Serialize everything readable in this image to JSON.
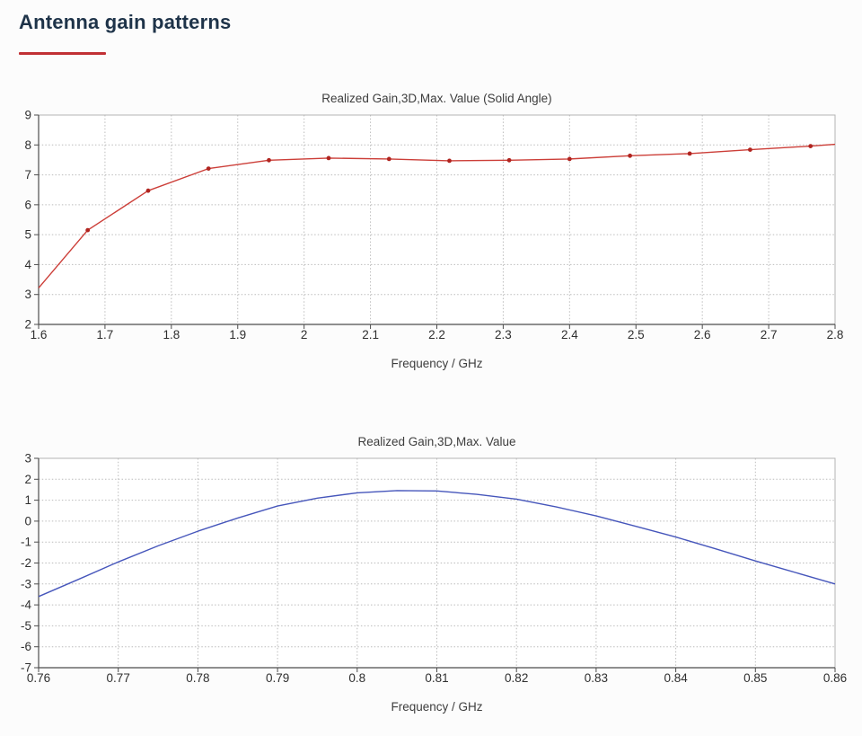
{
  "heading": {
    "text": "Antenna gain patterns",
    "text_color": "#1e3349",
    "underline_color": "#c13034"
  },
  "chart_data": [
    {
      "type": "line",
      "title": "Realized Gain,3D,Max. Value (Solid Angle)",
      "xlabel": "Frequency / GHz",
      "ylabel": "",
      "xlim": [
        1.6,
        2.8
      ],
      "ylim": [
        2,
        9
      ],
      "grid": true,
      "legend_position": "none",
      "xticks": [
        {
          "v": 1.6,
          "label": "1.6"
        },
        {
          "v": 1.7,
          "label": "1.7"
        },
        {
          "v": 1.8,
          "label": "1.8"
        },
        {
          "v": 1.9,
          "label": "1.9"
        },
        {
          "v": 2.0,
          "label": "2"
        },
        {
          "v": 2.1,
          "label": "2.1"
        },
        {
          "v": 2.2,
          "label": "2.2"
        },
        {
          "v": 2.3,
          "label": "2.3"
        },
        {
          "v": 2.4,
          "label": "2.4"
        },
        {
          "v": 2.5,
          "label": "2.5"
        },
        {
          "v": 2.6,
          "label": "2.6"
        },
        {
          "v": 2.7,
          "label": "2.7"
        },
        {
          "v": 2.8,
          "label": "2.8"
        }
      ],
      "yticks": [
        {
          "v": 2,
          "label": "2"
        },
        {
          "v": 3,
          "label": "3"
        },
        {
          "v": 4,
          "label": "4"
        },
        {
          "v": 5,
          "label": "5"
        },
        {
          "v": 6,
          "label": "6"
        },
        {
          "v": 7,
          "label": "7"
        },
        {
          "v": 8,
          "label": "8"
        },
        {
          "v": 9,
          "label": "9"
        }
      ],
      "series": [
        {
          "name": "Realized Gain, solid angle",
          "color": "#cc3e38",
          "marker_color": "#b0241f",
          "x": [
            1.6,
            1.674,
            1.765,
            1.856,
            1.947,
            2.037,
            2.128,
            2.219,
            2.309,
            2.4,
            2.491,
            2.581,
            2.672,
            2.763,
            2.8
          ],
          "y": [
            3.22,
            5.15,
            6.47,
            7.21,
            7.49,
            7.56,
            7.53,
            7.47,
            7.49,
            7.53,
            7.64,
            7.71,
            7.84,
            7.96,
            8.02
          ],
          "marker_x": [
            1.674,
            1.765,
            1.856,
            1.947,
            2.037,
            2.128,
            2.219,
            2.309,
            2.4,
            2.491,
            2.581,
            2.672,
            2.763
          ],
          "marker_y": [
            5.15,
            6.47,
            7.21,
            7.49,
            7.56,
            7.53,
            7.47,
            7.49,
            7.53,
            7.64,
            7.71,
            7.84,
            7.96
          ]
        }
      ]
    },
    {
      "type": "line",
      "title": "Realized Gain,3D,Max. Value",
      "xlabel": "Frequency / GHz",
      "ylabel": "",
      "xlim": [
        0.76,
        0.86
      ],
      "ylim": [
        -7,
        3
      ],
      "grid": true,
      "legend_position": "none",
      "xticks": [
        {
          "v": 0.76,
          "label": "0.76"
        },
        {
          "v": 0.77,
          "label": "0.77"
        },
        {
          "v": 0.78,
          "label": "0.78"
        },
        {
          "v": 0.79,
          "label": "0.79"
        },
        {
          "v": 0.8,
          "label": "0.8"
        },
        {
          "v": 0.81,
          "label": "0.81"
        },
        {
          "v": 0.82,
          "label": "0.82"
        },
        {
          "v": 0.83,
          "label": "0.83"
        },
        {
          "v": 0.84,
          "label": "0.84"
        },
        {
          "v": 0.85,
          "label": "0.85"
        },
        {
          "v": 0.86,
          "label": "0.86"
        }
      ],
      "yticks": [
        {
          "v": -7,
          "label": "-7"
        },
        {
          "v": -6,
          "label": "-6"
        },
        {
          "v": -5,
          "label": "-5"
        },
        {
          "v": -4,
          "label": "-4"
        },
        {
          "v": -3,
          "label": "-3"
        },
        {
          "v": -2,
          "label": "-2"
        },
        {
          "v": -1,
          "label": "-1"
        },
        {
          "v": 0,
          "label": "0"
        },
        {
          "v": 1,
          "label": "1"
        },
        {
          "v": 2,
          "label": "2"
        },
        {
          "v": 3,
          "label": "3"
        }
      ],
      "series": [
        {
          "name": "Realized Gain",
          "color": "#4656bb",
          "marker_color": null,
          "x": [
            0.76,
            0.765,
            0.77,
            0.775,
            0.78,
            0.785,
            0.79,
            0.795,
            0.8,
            0.805,
            0.81,
            0.815,
            0.82,
            0.825,
            0.83,
            0.835,
            0.84,
            0.845,
            0.85,
            0.855,
            0.86
          ],
          "y": [
            -3.6,
            -2.78,
            -1.95,
            -1.18,
            -0.48,
            0.15,
            0.72,
            1.1,
            1.35,
            1.46,
            1.44,
            1.28,
            1.05,
            0.68,
            0.25,
            -0.25,
            -0.76,
            -1.32,
            -1.9,
            -2.45,
            -3.0
          ],
          "marker_x": [],
          "marker_y": []
        }
      ]
    }
  ]
}
